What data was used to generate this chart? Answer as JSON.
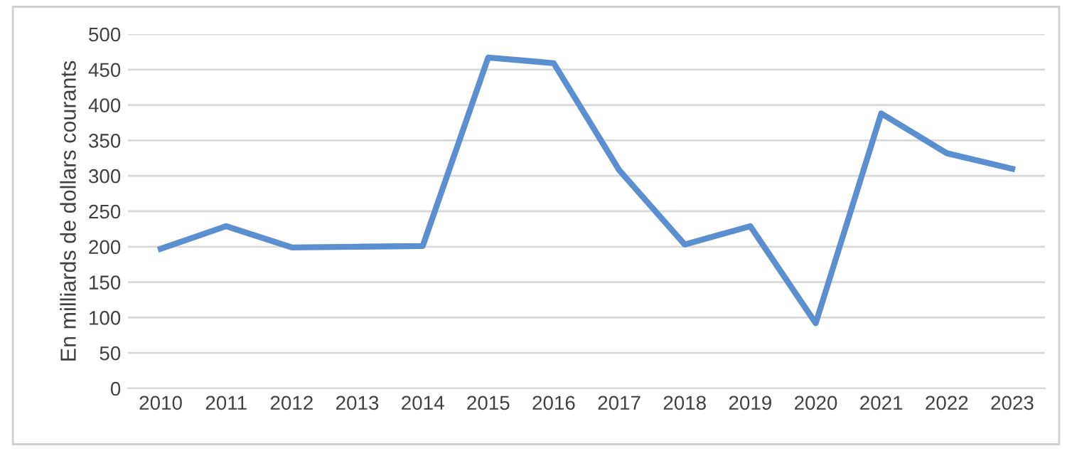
{
  "chart_data": {
    "type": "line",
    "ylabel": "En milliards de dollars courants",
    "categories": [
      "2010",
      "2011",
      "2012",
      "2013",
      "2014",
      "2015",
      "2016",
      "2017",
      "2018",
      "2019",
      "2020",
      "2021",
      "2022",
      "2023"
    ],
    "series": [
      {
        "color": "#5b8fd0",
        "values": [
          197,
          229,
          199,
          200,
          201,
          467,
          459,
          308,
          203,
          229,
          92,
          388,
          332,
          310
        ]
      }
    ],
    "ylim": [
      0,
      500
    ],
    "yticks": [
      0,
      50,
      100,
      150,
      200,
      250,
      300,
      350,
      400,
      450,
      500
    ],
    "grid": "y",
    "legend": false,
    "marker": "none",
    "line_style": "solid"
  }
}
